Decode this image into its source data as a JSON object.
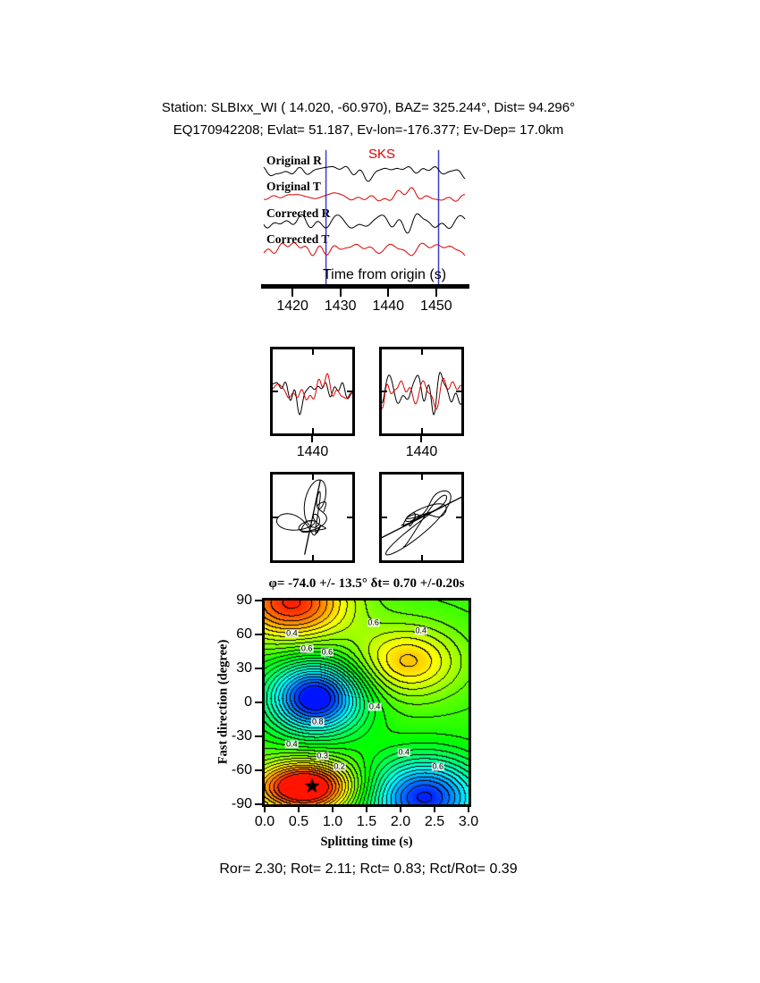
{
  "header": {
    "line1": "Station: SLBIxx_WI (  14.020,  -60.970), BAZ=  325.244°, Dist=   94.296°",
    "line2": "EQ170942208; Evlat=  51.187, Ev-lon=-176.377; Ev-Dep= 17.0km"
  },
  "footer": {
    "text": "Ror= 2.30; Rot= 2.11; Rct= 0.83; Rct/Rot= 0.39"
  },
  "chart_data": {
    "type": "composite",
    "waveform_panel": {
      "type": "line",
      "phase_label": "SKS",
      "phase_label_color": "#dd0000",
      "trace_labels": [
        "Original R",
        "Original T",
        "Corrected R",
        "Corrected T"
      ],
      "trace_colors": [
        "#000000",
        "#dd0000",
        "#000000",
        "#dd0000"
      ],
      "trace_seeds": [
        7,
        19,
        41,
        63
      ],
      "trace_amps": [
        12,
        10,
        12,
        8
      ],
      "xlabel": "Time from origin (s)",
      "xticks": [
        1420,
        1430,
        1440,
        1450
      ],
      "x_range": [
        1414,
        1456
      ],
      "window": [
        1427.0,
        1450.5
      ],
      "window_color": "#3b3bd0",
      "zoom_range": [
        1427,
        1453
      ]
    },
    "zoom_panels": [
      {
        "tick_label": "1440"
      },
      {
        "tick_label": "1440"
      }
    ],
    "particle_panels": [
      {
        "name": "original-particle-motion",
        "line_angle_deg": 78,
        "line_len": 85
      },
      {
        "name": "corrected-particle-motion",
        "line_angle_deg": 27,
        "line_len": 150
      }
    ],
    "measurement_title": "φ= -74.0 +/- 13.5° δt= 0.70 +/-0.20s",
    "contour_map": {
      "type": "heatmap",
      "xlabel": "Splitting time (s)",
      "ylabel": "Fast direction (degree)",
      "xlim": [
        0,
        3
      ],
      "ylim": [
        -90,
        90
      ],
      "xticks": [
        "0.0",
        "0.5",
        "1.0",
        "1.5",
        "2.0",
        "2.5",
        "3.0"
      ],
      "yticks": [
        90,
        60,
        30,
        0,
        -30,
        -60,
        -90
      ],
      "best_fit": {
        "splitting_time": 0.7,
        "fast_direction": -74
      },
      "level_step": 0.04,
      "base": 0.55,
      "blobs": [
        {
          "x": 0.4,
          "y": 88,
          "sx": 0.6,
          "sy": 24,
          "a": 0.42
        },
        {
          "x": 2.1,
          "y": 36,
          "sx": 0.55,
          "sy": 22,
          "a": 0.26
        },
        {
          "x": 0.75,
          "y": 4,
          "sx": 0.48,
          "sy": 22,
          "a": -0.58
        },
        {
          "x": 0.6,
          "y": -75,
          "sx": 0.52,
          "sy": 16,
          "a": 0.55
        },
        {
          "x": 2.35,
          "y": -84,
          "sx": 0.6,
          "sy": 24,
          "a": -0.52
        }
      ],
      "contour_labels": [
        {
          "text": "0.4",
          "x": 0.4,
          "y": 61
        },
        {
          "text": "0.6",
          "x": 0.62,
          "y": 47
        },
        {
          "text": "0.6",
          "x": 0.92,
          "y": 44
        },
        {
          "text": "0.6",
          "x": 1.6,
          "y": 70
        },
        {
          "text": "0.4",
          "x": 2.3,
          "y": 63
        },
        {
          "text": "0.4",
          "x": 1.62,
          "y": -4
        },
        {
          "text": "0.8",
          "x": 0.78,
          "y": -17
        },
        {
          "text": "0.4",
          "x": 0.4,
          "y": -37
        },
        {
          "text": "0.3",
          "x": 0.85,
          "y": -47
        },
        {
          "text": "0.2",
          "x": 1.1,
          "y": -57
        },
        {
          "text": "0.4",
          "x": 2.05,
          "y": -44
        },
        {
          "text": "0.6",
          "x": 2.55,
          "y": -57
        }
      ]
    }
  }
}
